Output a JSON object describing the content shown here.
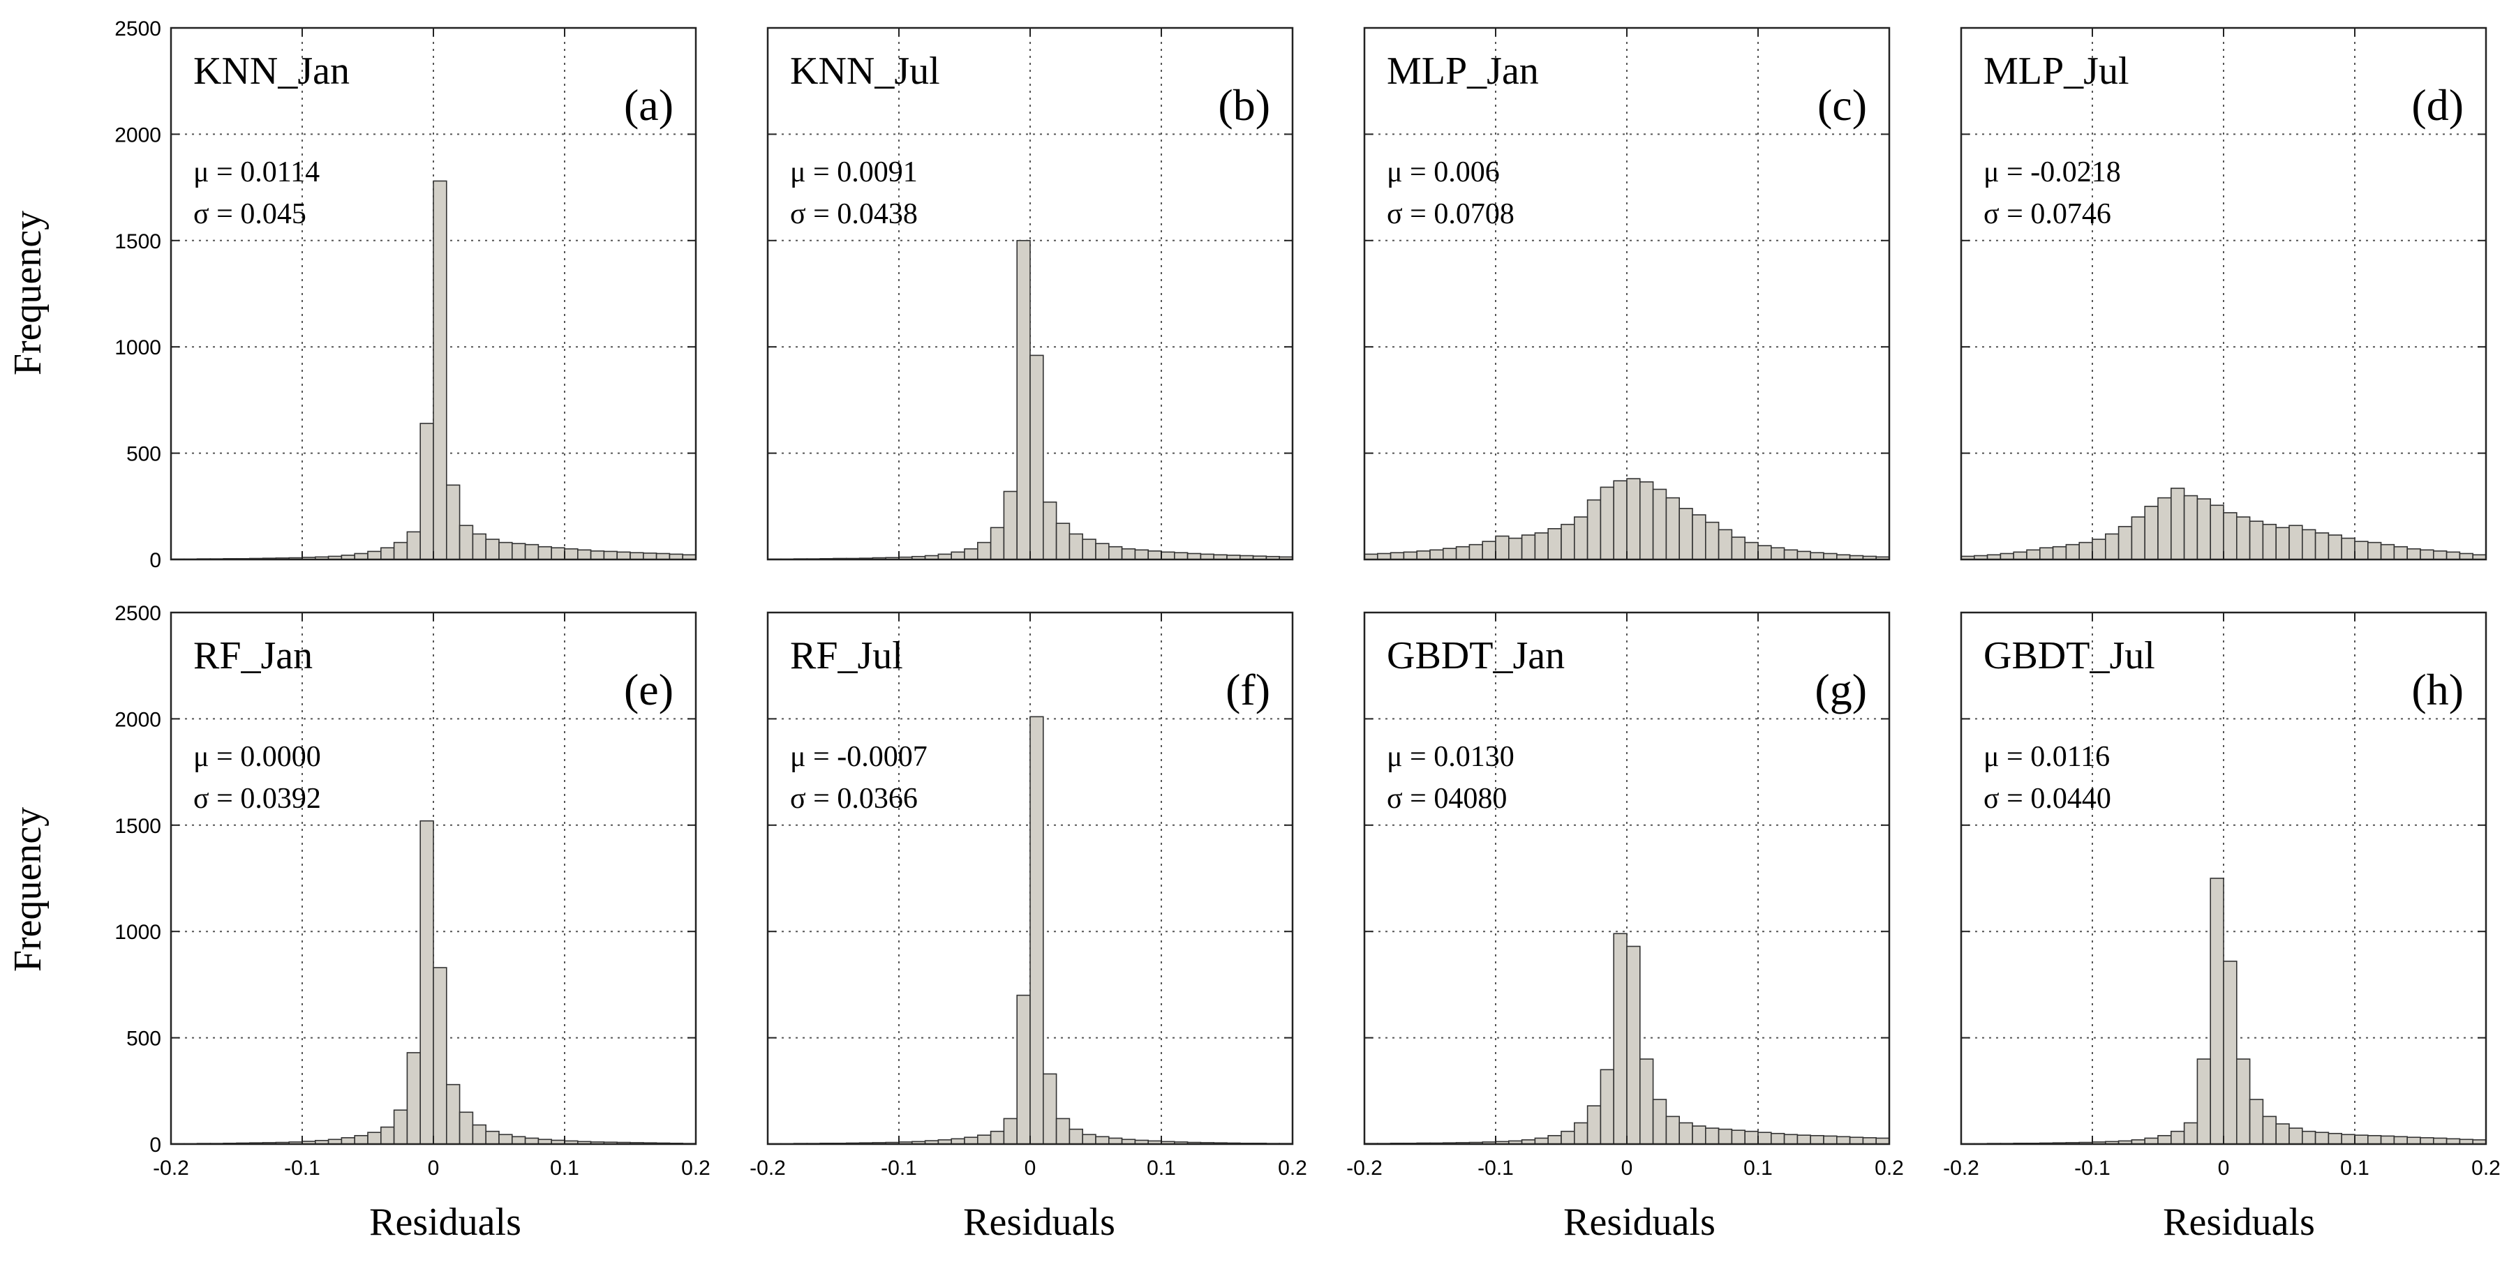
{
  "figure": {
    "ylabel": "Frequency",
    "xlabel": "Residuals",
    "colors": {
      "bar_fill": "#d3d0c8",
      "bar_stroke": "#333333",
      "grid": "#555555",
      "frame": "#222222",
      "text": "#000000"
    }
  },
  "chart_data": [
    {
      "type": "bar",
      "title": "KNN_Jan",
      "tag": "(a)",
      "mu_label": "μ = 0.0114",
      "sigma_label": "σ = 0.045",
      "xlabel": "",
      "ylabel": "Frequency",
      "xlim": [
        -0.2,
        0.2
      ],
      "ylim": [
        0,
        2500
      ],
      "xticks": [
        -0.2,
        -0.1,
        0,
        0.1,
        0.2
      ],
      "xtick_labels": [
        "",
        "",
        "",
        "",
        ""
      ],
      "yticks": [
        0,
        500,
        1000,
        1500,
        2000,
        2500
      ],
      "ytick_labels": [
        "0",
        "500",
        "1000",
        "1500",
        "2000",
        "2500"
      ],
      "bin_width": 0.01,
      "bin_centers": [
        -0.195,
        -0.185,
        -0.175,
        -0.165,
        -0.155,
        -0.145,
        -0.135,
        -0.125,
        -0.115,
        -0.105,
        -0.095,
        -0.085,
        -0.075,
        -0.065,
        -0.055,
        -0.045,
        -0.035,
        -0.025,
        -0.015,
        -0.005,
        0.005,
        0.015,
        0.025,
        0.035,
        0.045,
        0.055,
        0.065,
        0.075,
        0.085,
        0.095,
        0.105,
        0.115,
        0.125,
        0.135,
        0.145,
        0.155,
        0.165,
        0.175,
        0.185,
        0.195
      ],
      "values": [
        2,
        2,
        3,
        3,
        4,
        4,
        5,
        6,
        7,
        8,
        10,
        12,
        15,
        20,
        28,
        38,
        55,
        80,
        130,
        640,
        1780,
        350,
        160,
        120,
        95,
        80,
        75,
        70,
        60,
        55,
        50,
        45,
        40,
        38,
        35,
        32,
        30,
        28,
        25,
        22
      ]
    },
    {
      "type": "bar",
      "title": "KNN_Jul",
      "tag": "(b)",
      "mu_label": "μ =  0.0091",
      "sigma_label": "σ = 0.0438",
      "xlabel": "",
      "ylabel": "",
      "xlim": [
        -0.2,
        0.2
      ],
      "ylim": [
        0,
        2500
      ],
      "xticks": [
        -0.2,
        -0.1,
        0,
        0.1,
        0.2
      ],
      "xtick_labels": [
        "",
        "",
        "",
        "",
        ""
      ],
      "yticks": [
        0,
        500,
        1000,
        1500,
        2000,
        2500
      ],
      "ytick_labels": [
        "",
        "",
        "",
        "",
        "",
        ""
      ],
      "bin_width": 0.01,
      "bin_centers": [
        -0.195,
        -0.185,
        -0.175,
        -0.165,
        -0.155,
        -0.145,
        -0.135,
        -0.125,
        -0.115,
        -0.105,
        -0.095,
        -0.085,
        -0.075,
        -0.065,
        -0.055,
        -0.045,
        -0.035,
        -0.025,
        -0.015,
        -0.005,
        0.005,
        0.015,
        0.025,
        0.035,
        0.045,
        0.055,
        0.065,
        0.075,
        0.085,
        0.095,
        0.105,
        0.115,
        0.125,
        0.135,
        0.145,
        0.155,
        0.165,
        0.175,
        0.185,
        0.195
      ],
      "values": [
        2,
        2,
        3,
        3,
        4,
        5,
        5,
        6,
        8,
        9,
        11,
        14,
        18,
        25,
        35,
        50,
        80,
        150,
        320,
        1500,
        960,
        270,
        170,
        120,
        95,
        75,
        60,
        50,
        45,
        40,
        35,
        32,
        28,
        25,
        22,
        20,
        18,
        16,
        14,
        12
      ]
    },
    {
      "type": "bar",
      "title": "MLP_Jan",
      "tag": "(c)",
      "mu_label": "μ = 0.006",
      "sigma_label": "σ = 0.0708",
      "xlabel": "",
      "ylabel": "",
      "xlim": [
        -0.2,
        0.2
      ],
      "ylim": [
        0,
        2500
      ],
      "xticks": [
        -0.2,
        -0.1,
        0,
        0.1,
        0.2
      ],
      "xtick_labels": [
        "",
        "",
        "",
        "",
        ""
      ],
      "yticks": [
        0,
        500,
        1000,
        1500,
        2000,
        2500
      ],
      "ytick_labels": [
        "",
        "",
        "",
        "",
        "",
        ""
      ],
      "bin_width": 0.01,
      "bin_centers": [
        -0.195,
        -0.185,
        -0.175,
        -0.165,
        -0.155,
        -0.145,
        -0.135,
        -0.125,
        -0.115,
        -0.105,
        -0.095,
        -0.085,
        -0.075,
        -0.065,
        -0.055,
        -0.045,
        -0.035,
        -0.025,
        -0.015,
        -0.005,
        0.005,
        0.015,
        0.025,
        0.035,
        0.045,
        0.055,
        0.065,
        0.075,
        0.085,
        0.095,
        0.105,
        0.115,
        0.125,
        0.135,
        0.145,
        0.155,
        0.165,
        0.175,
        0.185,
        0.195
      ],
      "values": [
        25,
        28,
        32,
        35,
        40,
        45,
        52,
        60,
        70,
        85,
        110,
        100,
        115,
        125,
        145,
        165,
        200,
        280,
        340,
        370,
        380,
        365,
        330,
        290,
        240,
        210,
        175,
        140,
        105,
        80,
        65,
        55,
        45,
        38,
        32,
        28,
        22,
        18,
        15,
        12
      ]
    },
    {
      "type": "bar",
      "title": "MLP_Jul",
      "tag": "(d)",
      "mu_label": "μ = -0.0218",
      "sigma_label": "σ = 0.0746",
      "xlabel": "",
      "ylabel": "",
      "xlim": [
        -0.2,
        0.2
      ],
      "ylim": [
        0,
        2500
      ],
      "xticks": [
        -0.2,
        -0.1,
        0,
        0.1,
        0.2
      ],
      "xtick_labels": [
        "",
        "",
        "",
        "",
        ""
      ],
      "yticks": [
        0,
        500,
        1000,
        1500,
        2000,
        2500
      ],
      "ytick_labels": [
        "",
        "",
        "",
        "",
        "",
        ""
      ],
      "bin_width": 0.01,
      "bin_centers": [
        -0.195,
        -0.185,
        -0.175,
        -0.165,
        -0.155,
        -0.145,
        -0.135,
        -0.125,
        -0.115,
        -0.105,
        -0.095,
        -0.085,
        -0.075,
        -0.065,
        -0.055,
        -0.045,
        -0.035,
        -0.025,
        -0.015,
        -0.005,
        0.005,
        0.015,
        0.025,
        0.035,
        0.045,
        0.055,
        0.065,
        0.075,
        0.085,
        0.095,
        0.105,
        0.115,
        0.125,
        0.135,
        0.145,
        0.155,
        0.165,
        0.175,
        0.185,
        0.195
      ],
      "values": [
        15,
        18,
        22,
        28,
        35,
        45,
        55,
        60,
        70,
        80,
        95,
        120,
        155,
        200,
        250,
        290,
        335,
        300,
        285,
        255,
        220,
        200,
        180,
        165,
        150,
        160,
        140,
        125,
        115,
        100,
        85,
        80,
        70,
        60,
        50,
        45,
        40,
        35,
        28,
        22
      ]
    },
    {
      "type": "bar",
      "title": "RF_Jan",
      "tag": "(e)",
      "mu_label": "μ = 0.0000",
      "sigma_label": "σ = 0.0392",
      "xlabel": "Residuals",
      "ylabel": "Frequency",
      "xlim": [
        -0.2,
        0.2
      ],
      "ylim": [
        0,
        2500
      ],
      "xticks": [
        -0.2,
        -0.1,
        0,
        0.1,
        0.2
      ],
      "xtick_labels": [
        "-0.2",
        "-0.1",
        "0",
        "0.1",
        "0.2"
      ],
      "yticks": [
        0,
        500,
        1000,
        1500,
        2000,
        2500
      ],
      "ytick_labels": [
        "0",
        "500",
        "1000",
        "1500",
        "2000",
        "2500"
      ],
      "bin_width": 0.01,
      "bin_centers": [
        -0.195,
        -0.185,
        -0.175,
        -0.165,
        -0.155,
        -0.145,
        -0.135,
        -0.125,
        -0.115,
        -0.105,
        -0.095,
        -0.085,
        -0.075,
        -0.065,
        -0.055,
        -0.045,
        -0.035,
        -0.025,
        -0.015,
        -0.005,
        0.005,
        0.015,
        0.025,
        0.035,
        0.045,
        0.055,
        0.065,
        0.075,
        0.085,
        0.095,
        0.105,
        0.115,
        0.125,
        0.135,
        0.145,
        0.155,
        0.165,
        0.175,
        0.185,
        0.195
      ],
      "values": [
        2,
        2,
        3,
        3,
        4,
        5,
        6,
        7,
        8,
        10,
        13,
        17,
        22,
        30,
        40,
        55,
        80,
        160,
        430,
        1520,
        830,
        280,
        150,
        90,
        60,
        45,
        35,
        28,
        22,
        18,
        15,
        12,
        10,
        9,
        8,
        7,
        6,
        5,
        4,
        3
      ]
    },
    {
      "type": "bar",
      "title": "RF_Jul",
      "tag": "(f)",
      "mu_label": "μ = -0.0007",
      "sigma_label": "σ = 0.0366",
      "xlabel": "Residuals",
      "ylabel": "",
      "xlim": [
        -0.2,
        0.2
      ],
      "ylim": [
        0,
        2500
      ],
      "xticks": [
        -0.2,
        -0.1,
        0,
        0.1,
        0.2
      ],
      "xtick_labels": [
        "-0.2",
        "-0.1",
        "0",
        "0.1",
        "0.2"
      ],
      "yticks": [
        0,
        500,
        1000,
        1500,
        2000,
        2500
      ],
      "ytick_labels": [
        "",
        "",
        "",
        "",
        "",
        ""
      ],
      "bin_width": 0.01,
      "bin_centers": [
        -0.195,
        -0.185,
        -0.175,
        -0.165,
        -0.155,
        -0.145,
        -0.135,
        -0.125,
        -0.115,
        -0.105,
        -0.095,
        -0.085,
        -0.075,
        -0.065,
        -0.055,
        -0.045,
        -0.035,
        -0.025,
        -0.015,
        -0.005,
        0.005,
        0.015,
        0.025,
        0.035,
        0.045,
        0.055,
        0.065,
        0.075,
        0.085,
        0.095,
        0.105,
        0.115,
        0.125,
        0.135,
        0.145,
        0.155,
        0.165,
        0.175,
        0.185,
        0.195
      ],
      "values": [
        2,
        2,
        3,
        3,
        4,
        4,
        5,
        6,
        7,
        8,
        10,
        12,
        16,
        20,
        25,
        32,
        42,
        60,
        120,
        700,
        2010,
        330,
        120,
        70,
        45,
        35,
        28,
        22,
        18,
        15,
        12,
        10,
        8,
        7,
        6,
        5,
        4,
        4,
        3,
        3
      ]
    },
    {
      "type": "bar",
      "title": "GBDT_Jan",
      "tag": "(g)",
      "mu_label": "μ = 0.0130",
      "sigma_label": "σ = 04080",
      "xlabel": "Residuals",
      "ylabel": "",
      "xlim": [
        -0.2,
        0.2
      ],
      "ylim": [
        0,
        2500
      ],
      "xticks": [
        -0.2,
        -0.1,
        0,
        0.1,
        0.2
      ],
      "xtick_labels": [
        "-0.2",
        "-0.1",
        "0",
        "0.1",
        "0.2"
      ],
      "yticks": [
        0,
        500,
        1000,
        1500,
        2000,
        2500
      ],
      "ytick_labels": [
        "",
        "",
        "",
        "",
        "",
        ""
      ],
      "bin_width": 0.01,
      "bin_centers": [
        -0.195,
        -0.185,
        -0.175,
        -0.165,
        -0.155,
        -0.145,
        -0.135,
        -0.125,
        -0.115,
        -0.105,
        -0.095,
        -0.085,
        -0.075,
        -0.065,
        -0.055,
        -0.045,
        -0.035,
        -0.025,
        -0.015,
        -0.005,
        0.005,
        0.015,
        0.025,
        0.035,
        0.045,
        0.055,
        0.065,
        0.075,
        0.085,
        0.095,
        0.105,
        0.115,
        0.125,
        0.135,
        0.145,
        0.155,
        0.165,
        0.175,
        0.185,
        0.195
      ],
      "values": [
        3,
        3,
        4,
        4,
        5,
        5,
        6,
        7,
        8,
        10,
        12,
        15,
        20,
        28,
        40,
        60,
        100,
        180,
        350,
        990,
        930,
        400,
        210,
        130,
        100,
        85,
        75,
        70,
        65,
        60,
        55,
        50,
        45,
        42,
        40,
        38,
        35,
        32,
        30,
        28
      ]
    },
    {
      "type": "bar",
      "title": "GBDT_Jul",
      "tag": "(h)",
      "mu_label": "μ = 0.0116",
      "sigma_label": "σ = 0.0440",
      "xlabel": "Residuals",
      "ylabel": "",
      "xlim": [
        -0.2,
        0.2
      ],
      "ylim": [
        0,
        2500
      ],
      "xticks": [
        -0.2,
        -0.1,
        0,
        0.1,
        0.2
      ],
      "xtick_labels": [
        "-0.2",
        "-0.1",
        "0",
        "0.1",
        "0.2"
      ],
      "yticks": [
        0,
        500,
        1000,
        1500,
        2000,
        2500
      ],
      "ytick_labels": [
        "",
        "",
        "",
        "",
        "",
        ""
      ],
      "bin_width": 0.01,
      "bin_centers": [
        -0.195,
        -0.185,
        -0.175,
        -0.165,
        -0.155,
        -0.145,
        -0.135,
        -0.125,
        -0.115,
        -0.105,
        -0.095,
        -0.085,
        -0.075,
        -0.065,
        -0.055,
        -0.045,
        -0.035,
        -0.025,
        -0.015,
        -0.005,
        0.005,
        0.015,
        0.025,
        0.035,
        0.045,
        0.055,
        0.065,
        0.075,
        0.085,
        0.095,
        0.105,
        0.115,
        0.125,
        0.135,
        0.145,
        0.155,
        0.165,
        0.175,
        0.185,
        0.195
      ],
      "values": [
        2,
        2,
        3,
        3,
        4,
        4,
        5,
        6,
        7,
        8,
        10,
        12,
        15,
        20,
        28,
        40,
        60,
        100,
        400,
        1250,
        860,
        400,
        210,
        130,
        95,
        75,
        60,
        55,
        50,
        45,
        42,
        40,
        38,
        35,
        32,
        30,
        28,
        25,
        22,
        20
      ]
    }
  ]
}
